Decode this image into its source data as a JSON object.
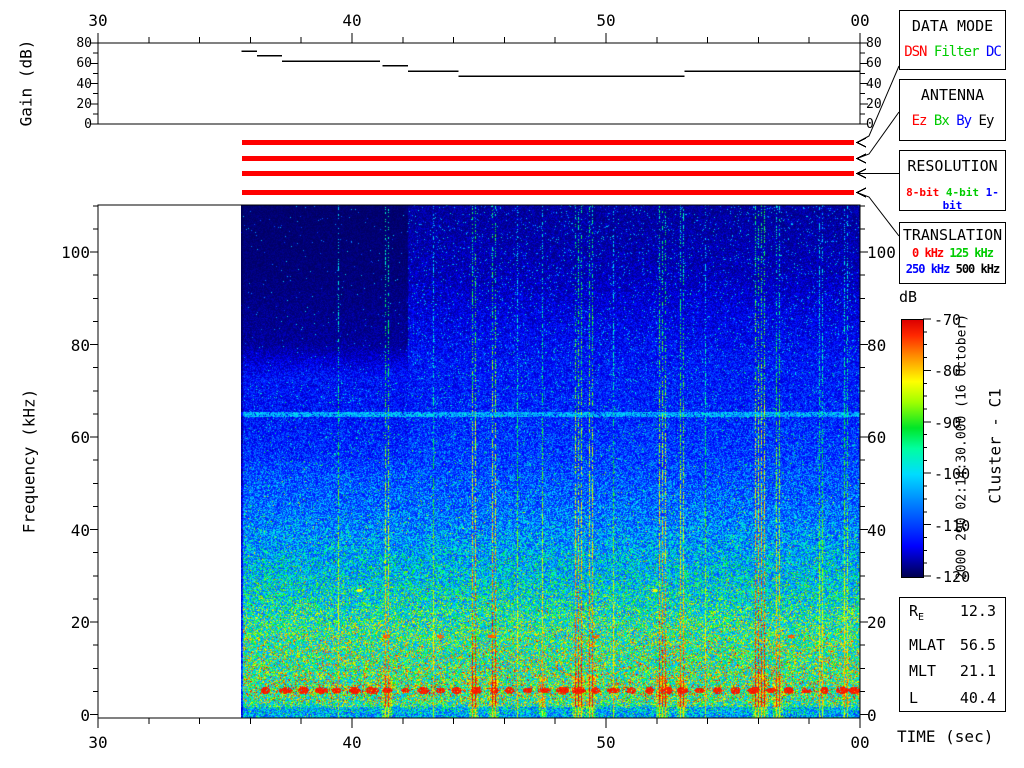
{
  "labels": {
    "gain_ylabel": "Gain (dB)",
    "freq_ylabel": "Frequency (kHz)",
    "time_xlabel": "TIME (sec)",
    "colorbar_title": "dB"
  },
  "side_annotations": {
    "datetime": "2000 290 02:14:30.000 (16 October)",
    "spacecraft": "Cluster - C1"
  },
  "legend_boxes": [
    {
      "id": "data-mode",
      "title": "DATA MODE",
      "items": [
        {
          "text": "DSN",
          "color": "#ff0000"
        },
        {
          "text": "Filter",
          "color": "#00cc00"
        },
        {
          "text": "DC",
          "color": "#0000ff"
        }
      ]
    },
    {
      "id": "antenna",
      "title": "ANTENNA",
      "items": [
        {
          "text": "Ez",
          "color": "#ff0000"
        },
        {
          "text": "Bx",
          "color": "#00cc00"
        },
        {
          "text": "By",
          "color": "#0000ff"
        },
        {
          "text": "Ey",
          "color": "#000000"
        }
      ]
    },
    {
      "id": "resolution",
      "title": "RESOLUTION",
      "items": [
        {
          "text": "8-bit",
          "color": "#ff0000"
        },
        {
          "text": "4-bit",
          "color": "#00cc00"
        },
        {
          "text": "1-bit",
          "color": "#0000ff"
        }
      ]
    },
    {
      "id": "translation",
      "title": "TRANSLATION",
      "rows": [
        [
          {
            "text": "0 kHz",
            "color": "#ff0000"
          },
          {
            "text": "125 kHz",
            "color": "#00cc00"
          }
        ],
        [
          {
            "text": "250 kHz",
            "color": "#0000ff"
          },
          {
            "text": "500 kHz",
            "color": "#000000"
          }
        ]
      ]
    }
  ],
  "bar_indicators": {
    "color": "#ff0000",
    "rows": [
      {
        "links_to": "DATA MODE",
        "active": "DSN"
      },
      {
        "links_to": "ANTENNA",
        "active": "Ez"
      },
      {
        "links_to": "RESOLUTION",
        "active": "8-bit"
      },
      {
        "links_to": "TRANSLATION",
        "active": "0 kHz"
      }
    ]
  },
  "params_box": {
    "rows": [
      {
        "label": "R",
        "sub": "E",
        "value": "12.3"
      },
      {
        "label": "MLAT",
        "sub": "",
        "value": "56.5"
      },
      {
        "label": "MLT",
        "sub": "",
        "value": "21.1"
      },
      {
        "label": "L",
        "sub": "",
        "value": "40.4"
      }
    ]
  },
  "chart_data": [
    {
      "id": "gain-panel",
      "type": "line",
      "ylabel": "Gain (dB)",
      "x_axis": {
        "range": [
          30,
          60
        ],
        "ticks": [
          30,
          40,
          50,
          60
        ],
        "tick_labels": [
          "30",
          "40",
          "50",
          "00"
        ],
        "minor_step": 2
      },
      "y_axis": {
        "range": [
          0,
          80
        ],
        "ticks": [
          0,
          20,
          40,
          60,
          80
        ],
        "tick_labels": [
          "0",
          "20",
          "40",
          "60",
          "80"
        ],
        "minor_step": 10
      },
      "series": [
        {
          "name": "receiver-gain",
          "style": "step-segments",
          "segments": [
            [
              35.65,
              36.25,
              72
            ],
            [
              36.25,
              37.25,
              67.5
            ],
            [
              37.25,
              41.1,
              62
            ],
            [
              41.2,
              42.2,
              57.5
            ],
            [
              42.2,
              44.2,
              52
            ],
            [
              44.2,
              53.1,
              47
            ],
            [
              53.1,
              60.0,
              52
            ]
          ]
        }
      ]
    },
    {
      "id": "spectrogram",
      "type": "heatmap",
      "xlabel": "TIME (sec)",
      "ylabel": "Frequency (kHz)",
      "x_axis": {
        "range": [
          30,
          60
        ],
        "ticks": [
          30,
          40,
          50,
          60
        ],
        "tick_labels": [
          "30",
          "40",
          "50",
          "00"
        ],
        "minor_step": 2
      },
      "y_axis": {
        "range": [
          0,
          110
        ],
        "ticks": [
          0,
          20,
          40,
          60,
          80,
          100
        ],
        "tick_labels": [
          "0",
          "20",
          "40",
          "60",
          "80",
          "100"
        ],
        "minor_step": 5
      },
      "data_start_time": 35.65,
      "colorbar": {
        "title": "dB",
        "range": [
          -120,
          -70
        ],
        "ticks": [
          -70,
          -80,
          -90,
          -100,
          -110,
          -120
        ],
        "tick_labels": [
          "-70",
          "-80",
          "-90",
          "-100",
          "-110",
          "-120"
        ],
        "minor_step": 2.5,
        "colormap": [
          [
            0,
            "#000050"
          ],
          [
            0.12,
            "#0000ff"
          ],
          [
            0.3,
            "#008cff"
          ],
          [
            0.4,
            "#00dcff"
          ],
          [
            0.5,
            "#00ffa0"
          ],
          [
            0.58,
            "#00e628"
          ],
          [
            0.68,
            "#a0ff00"
          ],
          [
            0.76,
            "#ffff00"
          ],
          [
            0.86,
            "#ff8c00"
          ],
          [
            0.94,
            "#ff2800"
          ],
          [
            1,
            "#dc0000"
          ]
        ]
      },
      "background_profile_db": [
        [
          110,
          -117
        ],
        [
          95,
          -116
        ],
        [
          85,
          -114
        ],
        [
          75,
          -112
        ],
        [
          65,
          -111
        ],
        [
          55,
          -109
        ],
        [
          45,
          -106
        ],
        [
          38,
          -103
        ],
        [
          30,
          -99
        ],
        [
          24,
          -96
        ],
        [
          20,
          -93
        ],
        [
          16,
          -91
        ],
        [
          12,
          -90
        ],
        [
          8,
          -89
        ],
        [
          5,
          -88
        ],
        [
          3,
          -90
        ],
        [
          1.5,
          -95
        ],
        [
          0,
          -98
        ]
      ],
      "features": {
        "quiet_region": {
          "t_max": 42.2,
          "f_min": 80
        },
        "narrowband_line_khz": 65,
        "bursts": [
          {
            "t": 39.45,
            "s": 0.09,
            "n": 1
          },
          {
            "t": 41.3,
            "s": 0.15,
            "n": 2
          },
          {
            "t": 43.2,
            "s": 0.06,
            "n": 1
          },
          {
            "t": 44.75,
            "s": 0.22,
            "n": 2
          },
          {
            "t": 45.55,
            "s": 0.22,
            "n": 2
          },
          {
            "t": 46.5,
            "s": 0.07,
            "n": 1
          },
          {
            "t": 47.5,
            "s": 0.11,
            "n": 1
          },
          {
            "t": 48.8,
            "s": 0.2,
            "n": 3
          },
          {
            "t": 49.35,
            "s": 0.2,
            "n": 2
          },
          {
            "t": 50.3,
            "s": 0.07,
            "n": 1
          },
          {
            "t": 52.1,
            "s": 0.2,
            "n": 3
          },
          {
            "t": 52.95,
            "s": 0.17,
            "n": 2
          },
          {
            "t": 53.9,
            "s": 0.06,
            "n": 1
          },
          {
            "t": 55.9,
            "s": 0.22,
            "n": 4
          },
          {
            "t": 56.7,
            "s": 0.15,
            "n": 2
          },
          {
            "t": 58.4,
            "s": 0.07,
            "n": 2
          },
          {
            "t": 59.4,
            "s": 0.09,
            "n": 2
          }
        ],
        "impulse_row_khz": 5.2,
        "impulse_times": [
          36.6,
          37.4,
          38.1,
          38.8,
          39.4,
          40.1,
          40.8,
          41.4,
          42.1,
          42.8,
          43.5,
          44.1,
          44.9,
          45.6,
          46.2,
          46.9,
          47.6,
          48.3,
          48.9,
          49.6,
          50.3,
          51.0,
          51.7,
          52.4,
          53.0,
          53.7,
          54.4,
          55.1,
          55.8,
          56.5,
          57.2,
          57.9,
          58.6,
          59.3,
          59.8
        ],
        "blobs_17khz": [
          41.35,
          43.5,
          45.5,
          49.6,
          57.3
        ],
        "blobs_27khz": [
          40.3,
          51.9
        ]
      }
    }
  ]
}
